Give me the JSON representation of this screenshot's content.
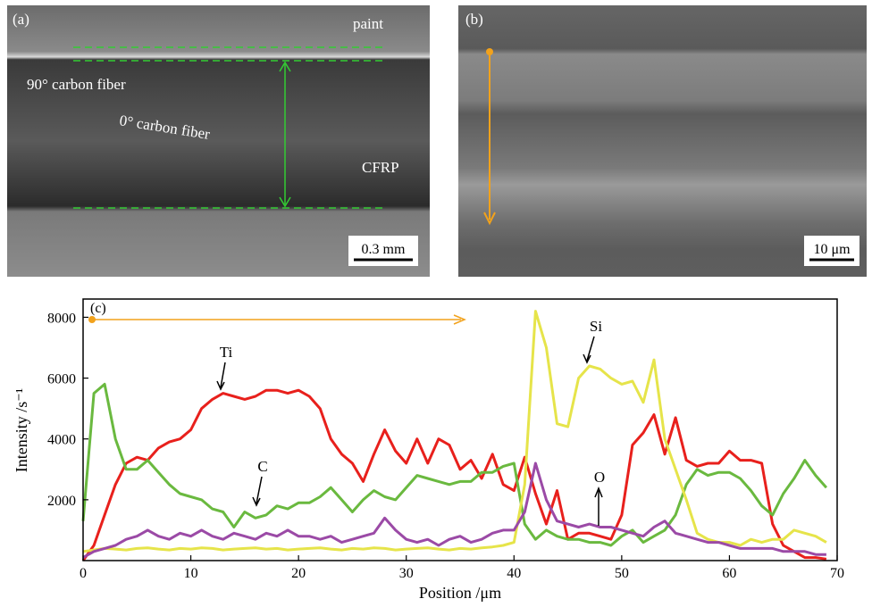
{
  "panels": [
    {
      "label": "(a)",
      "texts": [
        "paint",
        "90° carbon fiber",
        "0° carbon fiber",
        "CFRP"
      ],
      "scale_bar": "0.3 mm"
    },
    {
      "label": "(b)",
      "scale_bar": "10 μm"
    }
  ],
  "chart_data": {
    "type": "line",
    "panel_label": "(c)",
    "x_label": "Position /μm",
    "y_label": "Intensity /s⁻¹",
    "xlim": [
      0,
      70
    ],
    "ylim": [
      0,
      8600
    ],
    "xticks": [
      0,
      10,
      20,
      30,
      40,
      50,
      60,
      70
    ],
    "yticks": [
      2000,
      4000,
      6000,
      8000
    ],
    "x": [
      0,
      1,
      2,
      3,
      4,
      5,
      6,
      7,
      8,
      9,
      10,
      11,
      12,
      13,
      14,
      15,
      16,
      17,
      18,
      19,
      20,
      21,
      22,
      23,
      24,
      25,
      26,
      27,
      28,
      29,
      30,
      31,
      32,
      33,
      34,
      35,
      36,
      37,
      38,
      39,
      40,
      41,
      42,
      43,
      44,
      45,
      46,
      47,
      48,
      49,
      50,
      51,
      52,
      53,
      54,
      55,
      56,
      57,
      58,
      59,
      60,
      61,
      62,
      63,
      64,
      65,
      66,
      67,
      68,
      69
    ],
    "series": [
      {
        "name": "Ti",
        "color": "#e8201c",
        "values": [
          0,
          500,
          1500,
          2500,
          3200,
          3400,
          3300,
          3700,
          3900,
          4000,
          4300,
          5000,
          5300,
          5500,
          5400,
          5300,
          5400,
          5600,
          5600,
          5500,
          5600,
          5400,
          5000,
          4000,
          3500,
          3200,
          2600,
          3500,
          4300,
          3600,
          3200,
          4000,
          3200,
          4000,
          3800,
          3000,
          3300,
          2700,
          3500,
          2500,
          2300,
          3400,
          2200,
          1200,
          2300,
          700,
          900,
          900,
          800,
          700,
          1500,
          3800,
          4200,
          4800,
          3500,
          4700,
          3300,
          3100,
          3200,
          3200,
          3600,
          3300,
          3300,
          3200,
          1200,
          500,
          300,
          100,
          100,
          50
        ]
      },
      {
        "name": "C",
        "color": "#6ab93f",
        "values": [
          1300,
          5500,
          5800,
          4000,
          3000,
          3000,
          3300,
          2900,
          2500,
          2200,
          2100,
          2000,
          1700,
          1600,
          1100,
          1600,
          1400,
          1500,
          1800,
          1700,
          1900,
          1900,
          2100,
          2400,
          2000,
          1600,
          2000,
          2300,
          2100,
          2000,
          2400,
          2800,
          2700,
          2600,
          2500,
          2600,
          2600,
          2900,
          2900,
          3100,
          3200,
          1200,
          700,
          1000,
          800,
          700,
          700,
          600,
          600,
          500,
          800,
          1000,
          600,
          800,
          1000,
          1500,
          2500,
          3000,
          2800,
          2900,
          2900,
          2700,
          2300,
          1800,
          1500,
          2200,
          2700,
          3300,
          2800,
          2400
        ]
      },
      {
        "name": "Si",
        "color": "#e6e44a",
        "values": [
          300,
          350,
          400,
          380,
          350,
          400,
          420,
          380,
          350,
          400,
          380,
          420,
          400,
          350,
          380,
          400,
          420,
          380,
          400,
          350,
          380,
          400,
          420,
          380,
          350,
          400,
          380,
          420,
          400,
          350,
          380,
          400,
          420,
          380,
          350,
          400,
          380,
          420,
          450,
          500,
          600,
          2500,
          8200,
          7000,
          4500,
          4400,
          6000,
          6400,
          6300,
          6000,
          5800,
          5900,
          5200,
          6600,
          4000,
          3000,
          2000,
          900,
          700,
          600,
          600,
          500,
          700,
          600,
          700,
          700,
          1000,
          900,
          800,
          600
        ]
      },
      {
        "name": "O",
        "color": "#9b4aa6",
        "values": [
          100,
          300,
          400,
          500,
          700,
          800,
          1000,
          800,
          700,
          900,
          800,
          1000,
          800,
          700,
          900,
          800,
          700,
          900,
          800,
          1000,
          800,
          800,
          700,
          800,
          600,
          700,
          800,
          900,
          1400,
          1000,
          700,
          600,
          700,
          500,
          700,
          800,
          600,
          700,
          900,
          1000,
          1000,
          1600,
          3200,
          2000,
          1300,
          1200,
          1100,
          1200,
          1100,
          1100,
          1000,
          900,
          800,
          1100,
          1300,
          900,
          800,
          700,
          600,
          600,
          500,
          400,
          400,
          400,
          400,
          300,
          300,
          300,
          200,
          200
        ]
      }
    ]
  }
}
